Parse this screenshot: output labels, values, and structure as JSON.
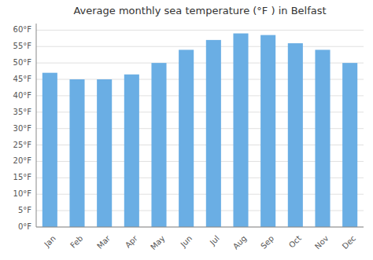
{
  "chart_data": {
    "type": "bar",
    "title": "Average monthly sea temperature (°F ) in Belfast",
    "categories": [
      "Jan",
      "Feb",
      "Mar",
      "Apr",
      "May",
      "Jun",
      "Jul",
      "Aug",
      "Sep",
      "Oct",
      "Nov",
      "Dec"
    ],
    "values": [
      47,
      45,
      45,
      46.5,
      50,
      54,
      57,
      59,
      58.5,
      56,
      54,
      50
    ],
    "color": "#6aaee4",
    "ylim": [
      0,
      62
    ],
    "yticks": [
      {
        "value": 0,
        "label": "0°F"
      },
      {
        "value": 5,
        "label": "5°F"
      },
      {
        "value": 10,
        "label": "10°F"
      },
      {
        "value": 15,
        "label": "15°F"
      },
      {
        "value": 20,
        "label": "20°F"
      },
      {
        "value": 25,
        "label": "25°F"
      },
      {
        "value": 30,
        "label": "30°F"
      },
      {
        "value": 35,
        "label": "35°F"
      },
      {
        "value": 40,
        "label": "40°F"
      },
      {
        "value": 45,
        "label": "45°F"
      },
      {
        "value": 50,
        "label": "50°F"
      },
      {
        "value": 55,
        "label": "55°F"
      },
      {
        "value": 60,
        "label": "60°F"
      }
    ],
    "grid": true
  }
}
